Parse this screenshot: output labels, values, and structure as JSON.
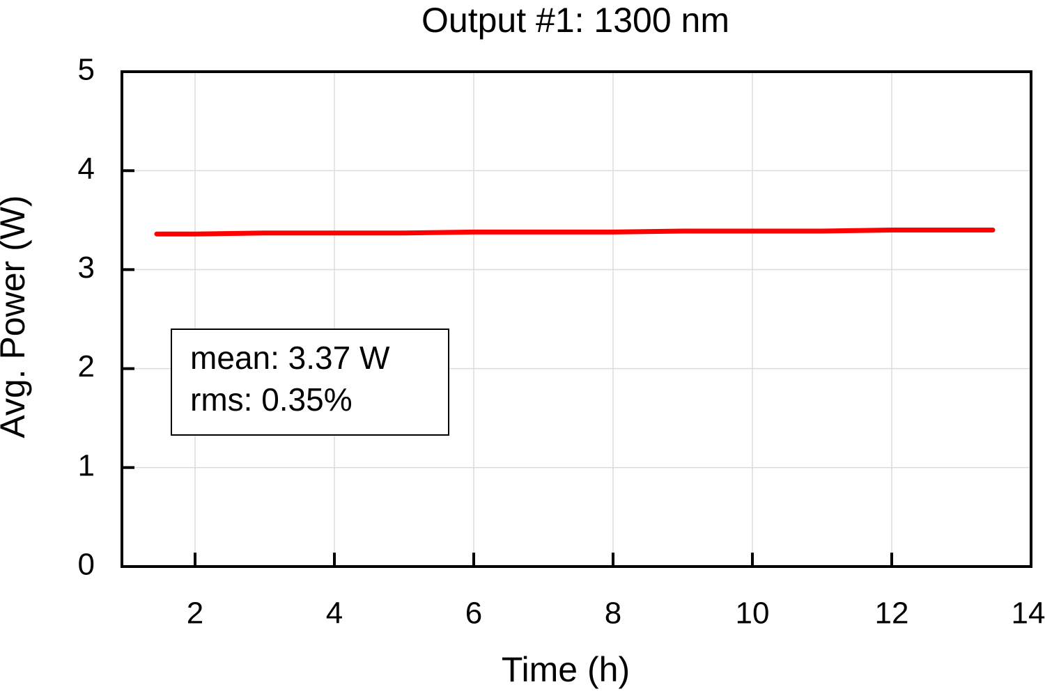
{
  "chart_data": {
    "type": "line",
    "title": "Output #1: 1300 nm",
    "x_label": "Time (h)",
    "y_label": "Avg. Power (W)",
    "annotations": [
      "mean: 3.37 W",
      "rms: 0.35%"
    ],
    "x": [
      1.45,
      2,
      3,
      4,
      5,
      6,
      7,
      8,
      9,
      10,
      11,
      12,
      13,
      13.45
    ],
    "series": [
      {
        "name": "Output #1",
        "color": "#ff0000",
        "values": [
          3.36,
          3.36,
          3.37,
          3.37,
          3.37,
          3.38,
          3.38,
          3.38,
          3.39,
          3.39,
          3.39,
          3.4,
          3.4,
          3.4
        ]
      }
    ],
    "xlim": [
      0.95,
      14
    ],
    "ylim": [
      0,
      5
    ],
    "xticks": [
      2,
      4,
      6,
      8,
      10,
      12,
      14
    ],
    "yticks": [
      0,
      1,
      2,
      3,
      4,
      5
    ],
    "grid": true
  }
}
